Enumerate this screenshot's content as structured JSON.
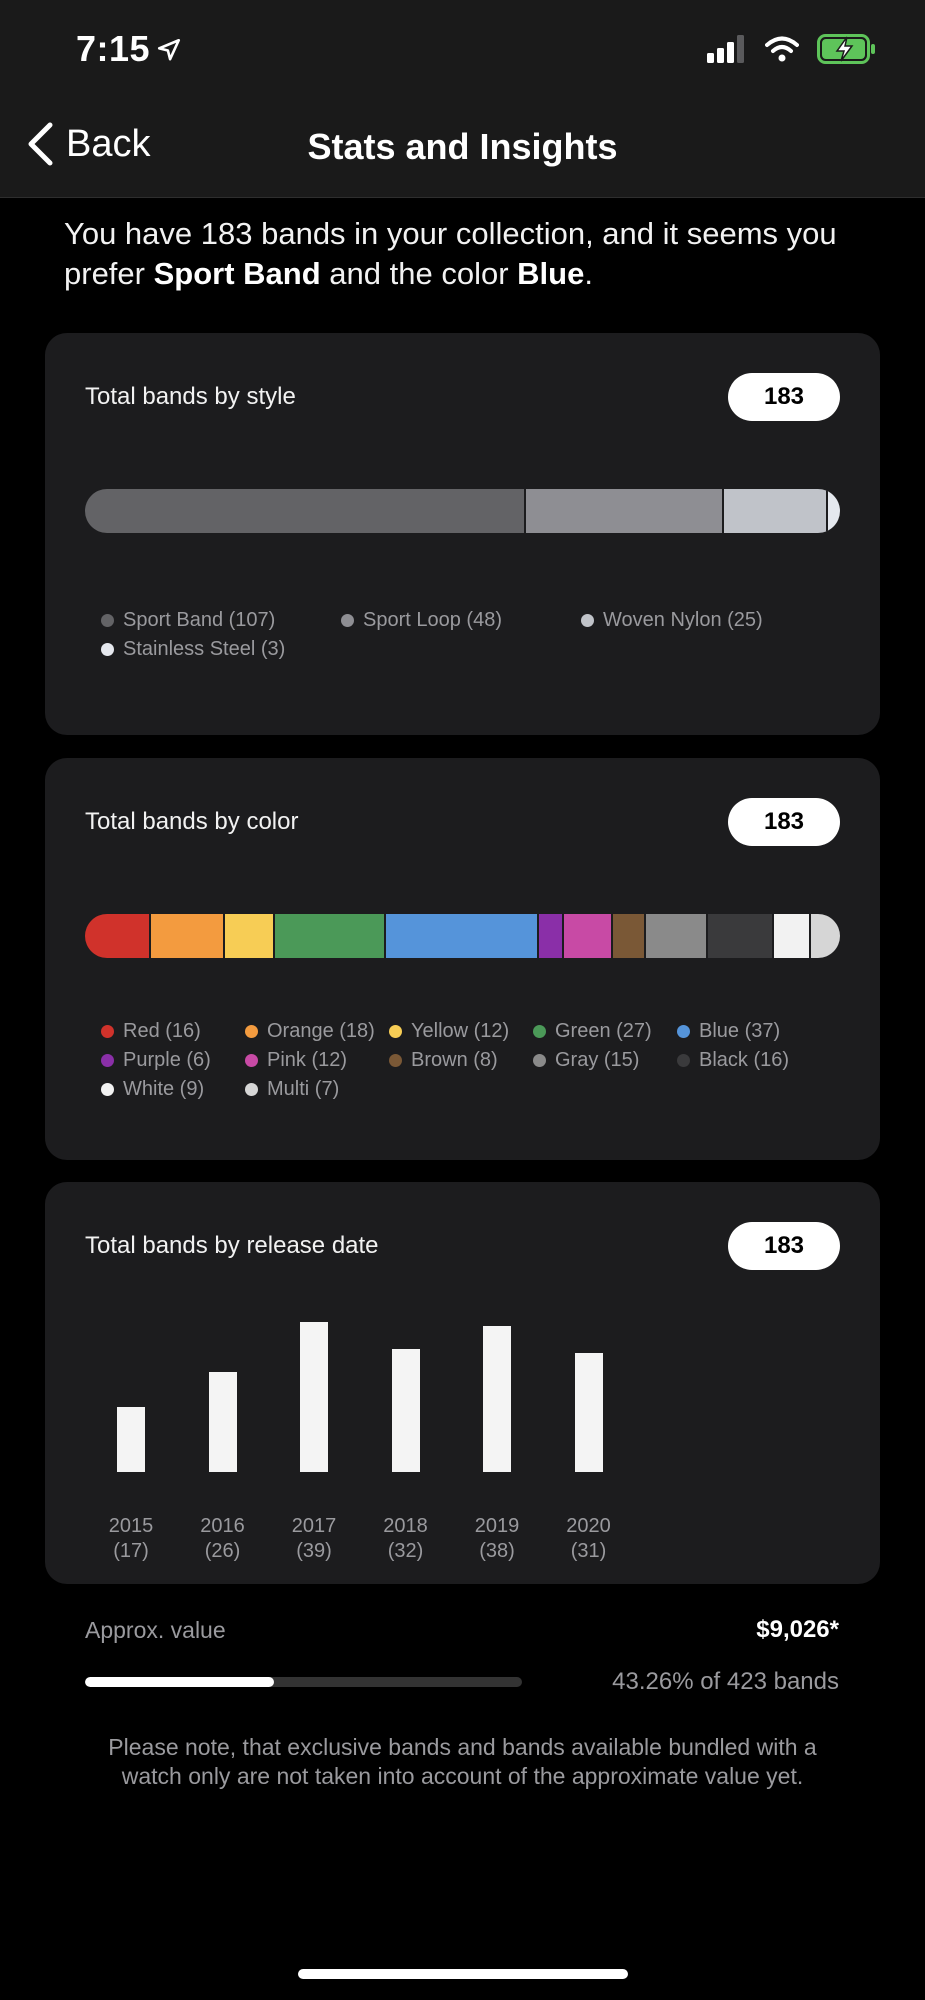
{
  "status_bar": {
    "time": "7:15",
    "location_icon": "location-arrow-icon",
    "signal_icon": "cellular-signal-icon",
    "wifi_icon": "wifi-icon",
    "battery_icon": "battery-charging-icon"
  },
  "nav": {
    "back_label": "Back",
    "title": "Stats and Insights"
  },
  "intro": {
    "text_before": "You have 183 bands in your collection, and it seems you prefer ",
    "style": "Sport Band",
    "text_middle": " and the color ",
    "color": "Blue",
    "text_after": "."
  },
  "style_card": {
    "title": "Total bands by style",
    "total": "183",
    "items": [
      {
        "label": "Sport Band (107)",
        "count": 107,
        "color": "#636366"
      },
      {
        "label": "Sport Loop (48)",
        "count": 48,
        "color": "#8e8e93"
      },
      {
        "label": "Woven Nylon (25)",
        "count": 25,
        "color": "#c0c3c9"
      },
      {
        "label": "Stainless Steel (3)",
        "count": 3,
        "color": "#e5e8ee"
      }
    ]
  },
  "color_card": {
    "title": "Total bands by color",
    "total": "183",
    "items": [
      {
        "label": "Red (16)",
        "count": 16,
        "color": "#d0322b"
      },
      {
        "label": "Orange (18)",
        "count": 18,
        "color": "#f39b3f"
      },
      {
        "label": "Yellow (12)",
        "count": 12,
        "color": "#f7cd55"
      },
      {
        "label": "Green (27)",
        "count": 27,
        "color": "#4b9958"
      },
      {
        "label": "Blue (37)",
        "count": 37,
        "color": "#5594da"
      },
      {
        "label": "Purple (6)",
        "count": 6,
        "color": "#8a2fa8"
      },
      {
        "label": "Pink (12)",
        "count": 12,
        "color": "#c84aa5"
      },
      {
        "label": "Brown (8)",
        "count": 8,
        "color": "#7a5836"
      },
      {
        "label": "Gray (15)",
        "count": 15,
        "color": "#8a8a8a"
      },
      {
        "label": "Black (16)",
        "count": 16,
        "color": "#3a3a3c"
      },
      {
        "label": "White (9)",
        "count": 9,
        "color": "#f2f2f2"
      },
      {
        "label": "Multi (7)",
        "count": 7,
        "color": "#d6d6d6"
      }
    ]
  },
  "release_card": {
    "title": "Total bands by release date",
    "total": "183",
    "chart_data": {
      "type": "bar",
      "categories": [
        "2015",
        "2016",
        "2017",
        "2018",
        "2019",
        "2020"
      ],
      "values": [
        17,
        26,
        39,
        32,
        38,
        31
      ],
      "tick_labels": [
        {
          "year": "2015",
          "count": "(17)"
        },
        {
          "year": "2016",
          "count": "(26)"
        },
        {
          "year": "2017",
          "count": "(39)"
        },
        {
          "year": "2018",
          "count": "(32)"
        },
        {
          "year": "2019",
          "count": "(38)"
        },
        {
          "year": "2020",
          "count": "(31)"
        }
      ],
      "title": "Total bands by release date",
      "xlabel": "",
      "ylabel": "",
      "ylim": [
        0,
        39
      ],
      "grid": false,
      "bar_color": "#f4f4f4"
    }
  },
  "value": {
    "label": "Approx. value",
    "amount": "$9,026*",
    "progress_percent": 43.26,
    "progress_text": "43.26% of 423 bands"
  },
  "note": "Please note, that exclusive bands and bands available bundled with a watch only are not taken into account of the approximate value yet."
}
